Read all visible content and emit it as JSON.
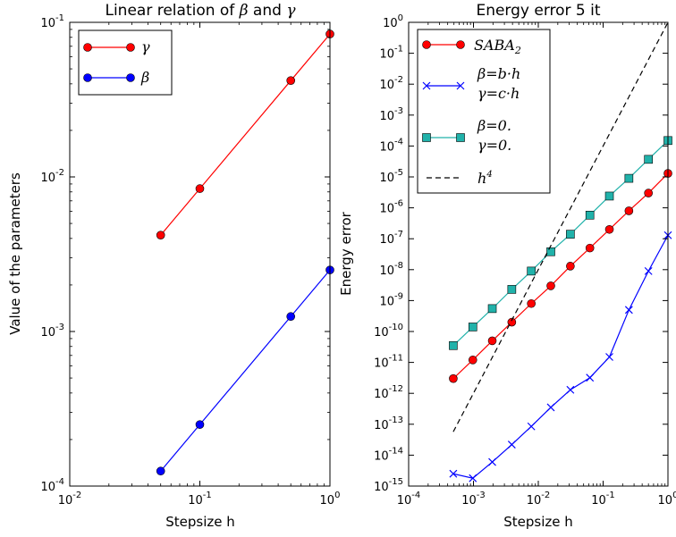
{
  "chart_data": [
    {
      "type": "line",
      "title": "Linear relation of β and γ",
      "xlabel": "Stepsize h",
      "ylabel": "Value of the parameters",
      "xscale": "log",
      "yscale": "log",
      "xlim": [
        0.01,
        1
      ],
      "ylim": [
        0.0001,
        0.1
      ],
      "x_ticks": [
        "10^-2",
        "10^-1",
        "10^0"
      ],
      "y_ticks": [
        "10^-4",
        "10^-3",
        "10^-2",
        "10^-1"
      ],
      "legend_position": "top-left",
      "x": [
        0.05,
        0.1,
        0.5,
        1.0
      ],
      "series": [
        {
          "name": "γ",
          "color": "#ff0000",
          "marker": "circle",
          "values": [
            0.0042,
            0.0084,
            0.042,
            0.084
          ]
        },
        {
          "name": "β",
          "color": "#0000ff",
          "marker": "circle",
          "values": [
            0.000125,
            0.00025,
            0.00125,
            0.0025
          ]
        }
      ]
    },
    {
      "type": "line",
      "title": "Energy error 5 it",
      "xlabel": "Stepsize h",
      "ylabel": "Energy error",
      "xscale": "log",
      "yscale": "log",
      "xlim": [
        0.0001,
        1
      ],
      "ylim": [
        1e-15,
        1
      ],
      "x_ticks": [
        "10^-4",
        "10^-3",
        "10^-2",
        "10^-1",
        "10^0"
      ],
      "y_ticks": [
        "10^-15",
        "10^-14",
        "10^-13",
        "10^-12",
        "10^-11",
        "10^-10",
        "10^-9",
        "10^-8",
        "10^-7",
        "10^-6",
        "10^-5",
        "10^-4",
        "10^-3",
        "10^-2",
        "10^-1",
        "10^0"
      ],
      "legend_position": "top-left",
      "x": [
        0.000488,
        0.000977,
        0.00195,
        0.0039,
        0.0078,
        0.0156,
        0.03125,
        0.0625,
        0.125,
        0.25,
        0.5,
        1.0
      ],
      "series": [
        {
          "name": "SABA₂",
          "color": "#ff0000",
          "marker": "circle",
          "values": [
            3e-12,
            1.2e-11,
            5e-11,
            2e-10,
            8e-10,
            3e-09,
            1.3e-08,
            5e-08,
            2e-07,
            8e-07,
            3e-06,
            1.3e-05
          ]
        },
        {
          "name": "β=b·h | γ=c·h",
          "color": "#0000ff",
          "marker": "x",
          "values": [
            2.5e-15,
            1.8e-15,
            6e-15,
            2.2e-14,
            8.5e-14,
            3.5e-13,
            1.3e-12,
            3.2e-12,
            1.5e-11,
            5e-10,
            9e-09,
            1.3e-07
          ]
        },
        {
          "name": "β=0. | γ=0.",
          "color": "#20b2aa",
          "marker": "square",
          "values": [
            3.5e-11,
            1.4e-10,
            5.5e-10,
            2.3e-09,
            9e-09,
            3.8e-08,
            1.4e-07,
            5.8e-07,
            2.4e-06,
            9e-06,
            3.7e-05,
            0.00015
          ]
        },
        {
          "name": "h⁴",
          "color": "#000000",
          "dash": true,
          "marker": "none",
          "x": [
            0.000488,
            1.0
          ],
          "values": [
            5.7e-14,
            1.0
          ]
        }
      ]
    }
  ],
  "legends": [
    [
      {
        "series": "γ",
        "label": "γ"
      },
      {
        "series": "β",
        "label": "β"
      }
    ],
    [
      {
        "series": "SABA₂",
        "label": "SABA",
        "sub": "2"
      },
      {
        "series": "β=b·h | γ=c·h",
        "line1": "β=b·h",
        "line2": "γ=c·h"
      },
      {
        "series": "β=0. | γ=0.",
        "line1": "β=0.",
        "line2": "γ=0."
      },
      {
        "series": "h⁴",
        "label": "h",
        "sup": "4"
      }
    ]
  ]
}
